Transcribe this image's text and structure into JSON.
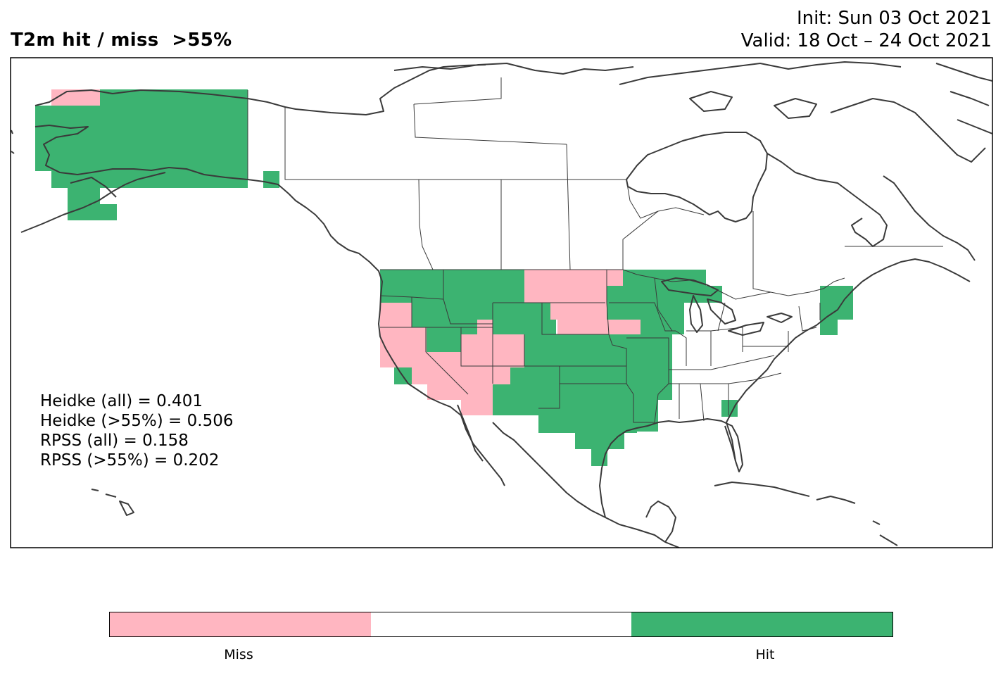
{
  "title": {
    "left": "T2m hit / miss  >55%",
    "init": "Init: Sun 03 Oct 2021",
    "valid": "Valid: 18 Oct – 24 Oct 2021"
  },
  "stats": {
    "heidke_all": "Heidke (all) = 0.401",
    "heidke_55": "Heidke (>55%) = 0.506",
    "rpss_all": "RPSS (all) = 0.158",
    "rpss_55": "RPSS (>55%) = 0.202"
  },
  "colors": {
    "miss": "#ffb6c1",
    "neutral": "#ffffff",
    "hit": "#3cb371",
    "coast": "#3a3a3a"
  },
  "colorbar": {
    "segments": [
      "miss",
      "neutral",
      "hit"
    ],
    "labels": {
      "miss": "Miss",
      "hit": "Hit"
    }
  },
  "legend_position": "bottom"
}
